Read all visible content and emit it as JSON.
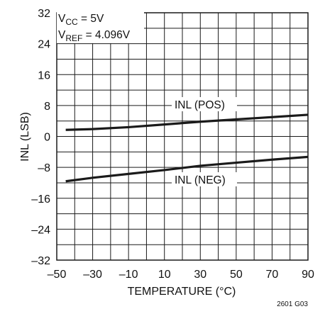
{
  "chart_data": {
    "type": "line",
    "xlabel": "TEMPERATURE (°C)",
    "ylabel": "INL (LSB)",
    "xlim": [
      -50,
      90
    ],
    "ylim": [
      -32,
      32
    ],
    "x_ticks": [
      -50,
      -30,
      -10,
      10,
      30,
      50,
      70,
      90
    ],
    "y_ticks": [
      32,
      24,
      16,
      8,
      0,
      -8,
      -16,
      -24,
      -32
    ],
    "x_tick_labels": [
      "–50",
      "–30",
      "–10",
      "10",
      "30",
      "50",
      "70",
      "90"
    ],
    "y_tick_labels": [
      "32",
      "24",
      "16",
      "8",
      "0",
      "–8",
      "–16",
      "–24",
      "–32"
    ],
    "grid": true,
    "series": [
      {
        "name": "INL (POS)",
        "x": [
          -45,
          -30,
          -10,
          10,
          30,
          50,
          70,
          90
        ],
        "y": [
          1.7,
          1.9,
          2.4,
          3.1,
          3.8,
          4.4,
          5.0,
          5.6
        ]
      },
      {
        "name": "INL (NEG)",
        "x": [
          -45,
          -30,
          -10,
          10,
          30,
          50,
          70,
          90
        ],
        "y": [
          -11.6,
          -10.7,
          -9.7,
          -8.7,
          -7.6,
          -6.8,
          -6.0,
          -5.3
        ]
      }
    ],
    "annotations": {
      "vcc": {
        "main": "V",
        "sub": "CC",
        "rest": " = 5V"
      },
      "vref": {
        "main": "V",
        "sub": "REF",
        "rest": " = 4.096V"
      },
      "figure_id": "2601 G03"
    },
    "line_color": "#1a1a1a",
    "grid_color": "#1a1a1a"
  }
}
